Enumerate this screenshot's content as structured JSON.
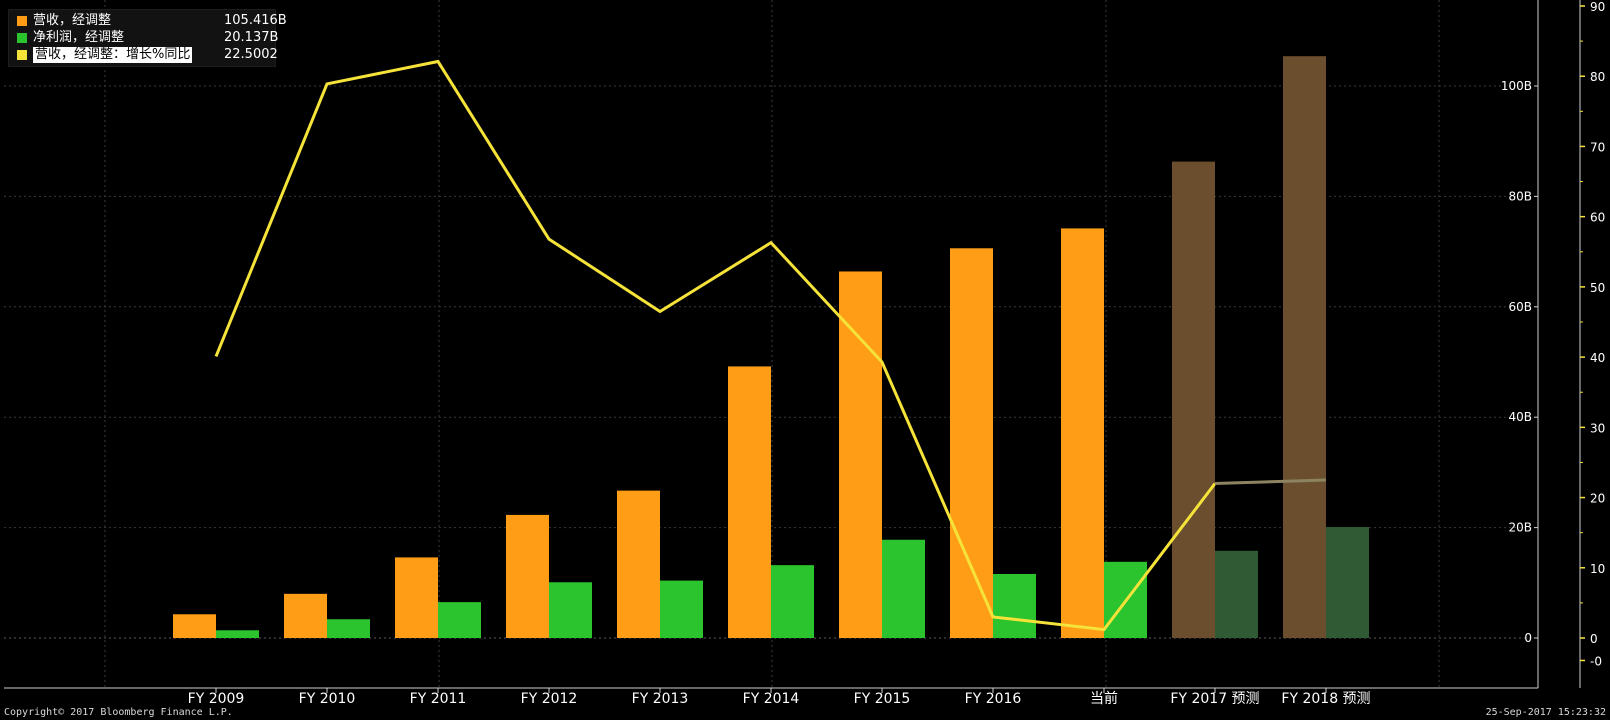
{
  "legend": {
    "items": [
      {
        "label": "营收，经调整",
        "value": "105.416B",
        "color": "#ff9e16"
      },
      {
        "label": "净利润，经调整",
        "value": "20.137B",
        "color": "#2bc32e"
      },
      {
        "label": "营收，经调整：增长%同比",
        "value": "22.5002",
        "color": "#f5e33a"
      }
    ]
  },
  "footer": {
    "copyright": "Copyright© 2017 Bloomberg Finance L.P.",
    "timestamp": "25-Sep-2017 15:23:32"
  },
  "chart_data": {
    "type": "bar",
    "categories": [
      "FY 2009",
      "FY 2010",
      "FY 2011",
      "FY 2012",
      "FY 2013",
      "FY 2014",
      "FY 2015",
      "FY 2016",
      "当前",
      "FY 2017 预测",
      "FY 2018 预测"
    ],
    "forecast_categories": [
      "FY 2017 预测",
      "FY 2018 预测"
    ],
    "series": [
      {
        "name": "营收，经调整",
        "axis": "right-inner",
        "color": "#ff9e16",
        "forecast_color": "#6a4e2e",
        "values": [
          4.3,
          8.0,
          14.6,
          22.3,
          26.7,
          49.2,
          66.4,
          70.6,
          74.2,
          86.3,
          105.4
        ]
      },
      {
        "name": "净利润，经调整",
        "axis": "right-inner",
        "color": "#2bc32e",
        "forecast_color": "#2f5a33",
        "values": [
          1.4,
          3.4,
          6.5,
          10.1,
          10.4,
          13.2,
          17.8,
          11.6,
          13.8,
          15.8,
          20.1
        ]
      },
      {
        "name": "营收，经调整：增长%同比",
        "axis": "right-outer",
        "type": "line",
        "color": "#f5e33a",
        "forecast_color": "#8c8460",
        "values": [
          40.1,
          78.9,
          82.1,
          56.8,
          46.5,
          56.3,
          39.3,
          3.0,
          1.2,
          22.0,
          22.5
        ]
      }
    ],
    "axes": {
      "right_inner": {
        "ylim": [
          0,
          105
        ],
        "ticks": [
          "0",
          "20B",
          "40B",
          "60B",
          "80B",
          "100B"
        ],
        "tick_values": [
          0,
          20,
          40,
          60,
          80,
          100
        ]
      },
      "right_outer": {
        "ylim": [
          -5,
          90
        ],
        "ticks": [
          "-0",
          "0",
          "10",
          "20",
          "30",
          "40",
          "50",
          "60",
          "70",
          "80",
          "90"
        ],
        "tick_values": [
          -3.2,
          0,
          10,
          20,
          30,
          40,
          50,
          60,
          70,
          80,
          90
        ]
      }
    },
    "grid": true,
    "legend_position": "top-left"
  }
}
